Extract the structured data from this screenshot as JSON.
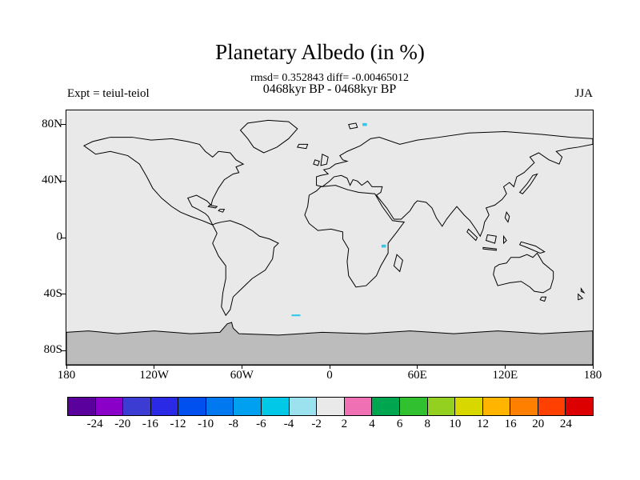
{
  "chart_data": {
    "type": "map",
    "title": "Planetary Albedo (in %)",
    "stats_line": "rmsd= 0.352843 diff= -0.00465012",
    "rmsd": 0.352843,
    "diff": -0.00465012,
    "period_line": "0468kyr BP - 0468kyr BP",
    "experiment_label": "Expt = teiul-teiol",
    "season_label": "JJA",
    "map": {
      "projection": "equirectangular",
      "lon_range": [
        -180,
        180
      ],
      "lat_range": [
        -90,
        90
      ],
      "ocean_fill": "#e9e9e9",
      "antarctica_fill": "#bcbcbc",
      "coastline_color": "#000000"
    },
    "axes": {
      "lat_ticks": [
        {
          "label": "80N",
          "lat": 80
        },
        {
          "label": "40N",
          "lat": 40
        },
        {
          "label": "0",
          "lat": 0
        },
        {
          "label": "40S",
          "lat": -40
        },
        {
          "label": "80S",
          "lat": -80
        }
      ],
      "lon_ticks": [
        {
          "label": "180",
          "lon": -180
        },
        {
          "label": "120W",
          "lon": -120
        },
        {
          "label": "60W",
          "lon": -60
        },
        {
          "label": "0",
          "lon": 0
        },
        {
          "label": "60E",
          "lon": 60
        },
        {
          "label": "120E",
          "lon": 120
        },
        {
          "label": "180",
          "lon": 180
        }
      ]
    },
    "colorbar": {
      "labels": [
        "-24",
        "-20",
        "-16",
        "-12",
        "-10",
        "-8",
        "-6",
        "-4",
        "-2",
        "2",
        "4",
        "6",
        "8",
        "10",
        "12",
        "16",
        "20",
        "24"
      ],
      "colors": [
        "#5a009d",
        "#8a00c8",
        "#3c3cd2",
        "#2a2ae6",
        "#0050f0",
        "#0078f0",
        "#00a0f0",
        "#00c8e6",
        "#9ce2ee",
        "#e9e9e9",
        "#f070b4",
        "#00a550",
        "#30c030",
        "#94d020",
        "#d8d800",
        "#ffb400",
        "#ff8000",
        "#ff4000",
        "#dd0000"
      ]
    },
    "anomalies": [
      {
        "kind": "dot",
        "lon": 24,
        "lat": 80,
        "color": "#2fc8e8"
      },
      {
        "kind": "dot",
        "lon": 37,
        "lat": -6,
        "color": "#2fc8e8"
      },
      {
        "kind": "dash",
        "lat": -55,
        "lon_from": -26,
        "lon_to": -20,
        "color": "#2fc8e8"
      }
    ]
  }
}
